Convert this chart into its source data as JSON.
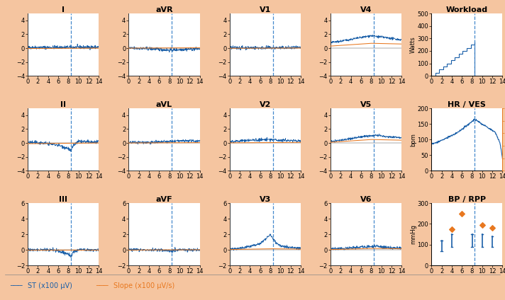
{
  "background_color": "#f5c5a0",
  "plot_bg": "#ffffff",
  "blue_color": "#1a5fa8",
  "orange_color": "#e87820",
  "dashed_color": "#4488cc",
  "title_fontsize": 8,
  "tick_fontsize": 6,
  "label_fontsize": 6,
  "dashed_x": 8.5,
  "xlim": [
    0,
    14
  ],
  "ylim_ecg_row12": [
    -4,
    5
  ],
  "ylim_ecg_row3": [
    -2,
    6
  ],
  "footer_text_blue": "ST (x100 μV)",
  "footer_text_orange": "Slope (x100 μV/s)",
  "leads_row1": [
    "I",
    "aVR",
    "V1",
    "V4"
  ],
  "leads_row2": [
    "II",
    "aVL",
    "V2",
    "V5"
  ],
  "leads_row3": [
    "III",
    "aVF",
    "V3",
    "V6"
  ],
  "wl_ylabel": "Watts",
  "hr_ylabel": "bpm",
  "bp_ylabel": "mmHg"
}
